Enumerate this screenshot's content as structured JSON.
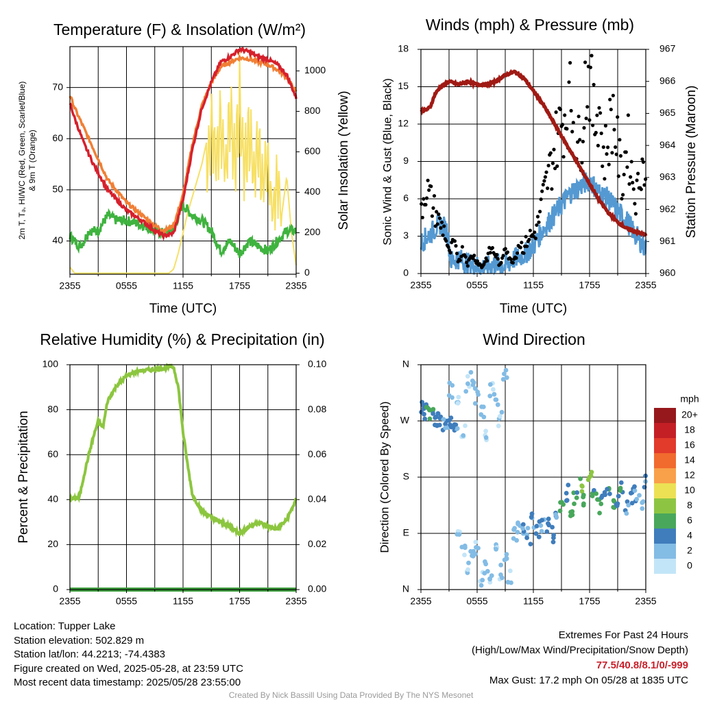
{
  "colors": {
    "temperature": "#d6202c",
    "temp_9m": "#f07f35",
    "dewpoint": "#3fb33f",
    "insolation": "#f7e066",
    "wind_speed": "#5499d2",
    "gust": "#000000",
    "pressure": "#a01a14",
    "humidity": "#8cc63f",
    "precip": "#3e9e3e",
    "extremes": "#c8202a"
  },
  "panels": {
    "temperature": {
      "title": "Temperature (F) & Insolation (W/m²)",
      "ylabel_left": "2m T, Tₔ, HI/WC (Red, Green, Scarlet/Blue) & 9m T (Orange)",
      "ylabel_left_line1": "2m T, Tₔ, HI/WC (Red, Green, Scarlet/Blue)",
      "ylabel_left_line2": "& 9m T (Orange)",
      "ylabel_right": "Solar Insolation (Yellow)",
      "xlabel": "Time (UTC)"
    },
    "winds": {
      "title": "Winds (mph) & Pressure (mb)",
      "ylabel_left": "Sonic Wind & Gust (Blue, Black)",
      "ylabel_right": "Station Pressure (Maroon)",
      "xlabel": "Time (UTC)"
    },
    "humidity": {
      "title": "Relative Humidity (%) & Precipitation (in)",
      "ylabel_left": "Percent & Precipitation"
    },
    "direction": {
      "title": "Wind Direction",
      "ylabel_left": "Direction (Colored By Speed)",
      "legend_title": "mph",
      "legend_labels": [
        "20+",
        "18",
        "16",
        "14",
        "12",
        "10",
        "8",
        "6",
        "4",
        "2",
        "0"
      ],
      "legend_colors": [
        "#96181c",
        "#c51f26",
        "#e23a2b",
        "#f16a2e",
        "#f9a04a",
        "#ece154",
        "#8dc543",
        "#48a75b",
        "#3f7dbc",
        "#83bce5",
        "#c3e5f8"
      ]
    }
  },
  "info": {
    "location": "Location: Tupper Lake",
    "elevation": "Station elevation: 502.829 m",
    "latlon": "Station lat/lon: 44.2213; -74.4383",
    "created": "Figure created on Wed, 2025-05-28, at 23:59 UTC",
    "recent": "Most recent data timestamp: 2025/05/28 23:55:00",
    "extremes_title": "Extremes For Past 24 Hours",
    "extremes_sub": "(High/Low/Max Wind/Precipitation/Snow Depth)",
    "extremes_values": "77.5/40.8/8.1/0/-999",
    "max_gust": "Max Gust: 17.2 mph On 05/28 at 1835 UTC",
    "credit": "Created By Nick Bassill Using Data Provided By The NYS Mesonet"
  },
  "chart_data": [
    {
      "type": "line",
      "title": "Temperature (F) & Insolation (W/m²)",
      "xlabel": "Time (UTC)",
      "x_ticks": [
        "2355",
        "0555",
        "1155",
        "1755",
        "2355"
      ],
      "x_hours": [
        0,
        6,
        12,
        18,
        24
      ],
      "ylim": [
        33.5,
        78
      ],
      "yticks": [
        40,
        50,
        60,
        70
      ],
      "y2lim": [
        -5,
        1120
      ],
      "y2ticks": [
        0,
        200,
        400,
        600,
        800,
        1000
      ],
      "series": [
        {
          "axis": "left",
          "color_key": "temperature",
          "x": [
            0,
            0.5,
            1.5,
            2.5,
            4,
            6,
            8,
            9,
            10,
            11,
            12,
            13,
            14,
            15,
            16,
            17,
            18,
            19,
            20,
            21,
            22,
            23,
            24
          ],
          "y": [
            67,
            64,
            59,
            55,
            50,
            46,
            43.5,
            42,
            41,
            41.5,
            48,
            58,
            66,
            71,
            75,
            76,
            77.5,
            77,
            76,
            75.5,
            74.5,
            72.5,
            68
          ]
        },
        {
          "axis": "left",
          "color_key": "temp_9m",
          "x": [
            0,
            0.5,
            1.5,
            2.5,
            4,
            6,
            8,
            9,
            10,
            11,
            12,
            13,
            14,
            15,
            16,
            17,
            18,
            19,
            20,
            21,
            22,
            23,
            24
          ],
          "y": [
            68.5,
            66,
            62,
            58,
            52,
            47.5,
            44.5,
            43,
            42,
            43,
            49,
            59,
            66.5,
            71,
            74,
            75,
            75.8,
            75.6,
            75,
            74.5,
            73.5,
            72,
            69
          ]
        },
        {
          "axis": "left",
          "color_key": "dewpoint",
          "x": [
            0,
            1,
            1.5,
            2,
            3,
            4,
            5,
            6,
            7,
            8,
            9,
            10,
            11,
            12,
            13,
            14,
            15,
            16,
            17,
            18,
            19,
            20,
            21,
            22,
            23,
            24
          ],
          "y": [
            41,
            39,
            40,
            42,
            42,
            45,
            44,
            44,
            43.5,
            43,
            42,
            41.5,
            42.5,
            47,
            45,
            44,
            42,
            38,
            40,
            37.5,
            40,
            39,
            38,
            40,
            42,
            42
          ]
        },
        {
          "axis": "right",
          "color_key": "insolation",
          "x": [
            0,
            0.5,
            10.5,
            11,
            11.5,
            12,
            12.5,
            13,
            13.5,
            14,
            14.5,
            15,
            15.5,
            16,
            16.5,
            17,
            17.5,
            18,
            18.5,
            19,
            19.5,
            20,
            20.5,
            21,
            21.5,
            22,
            22.5,
            23,
            23.5,
            24
          ],
          "y": [
            30,
            0,
            0,
            20,
            100,
            200,
            300,
            380,
            460,
            540,
            650,
            960,
            700,
            1000,
            620,
            1050,
            700,
            1080,
            650,
            950,
            600,
            850,
            500,
            750,
            350,
            620,
            300,
            480,
            200,
            40
          ]
        }
      ]
    },
    {
      "type": "line",
      "title": "Winds (mph) & Pressure (mb)",
      "xlabel": "Time (UTC)",
      "x_ticks": [
        "2355",
        "0555",
        "1155",
        "1755",
        "2355"
      ],
      "x_hours": [
        0,
        6,
        12,
        18,
        24
      ],
      "ylim": [
        0,
        18
      ],
      "yticks": [
        0,
        3,
        6,
        9,
        12,
        15,
        18
      ],
      "y2lim": [
        960,
        967
      ],
      "y2ticks": [
        960,
        961,
        962,
        963,
        964,
        965,
        966,
        967
      ],
      "series": [
        {
          "axis": "left",
          "color_key": "wind_speed",
          "x": [
            0,
            1,
            2,
            2.8,
            3.2,
            4,
            5,
            6,
            7,
            8,
            9,
            10,
            11,
            12,
            13,
            14,
            15,
            16,
            17,
            18,
            19,
            20,
            21,
            22,
            23,
            24
          ],
          "y": [
            2.5,
            3.2,
            4,
            3.5,
            1,
            1.2,
            0.8,
            0.6,
            0.5,
            0.8,
            0.6,
            1.2,
            1.5,
            2.2,
            3.5,
            4.5,
            5.5,
            6.5,
            7,
            7.5,
            6.5,
            6,
            5,
            4.2,
            3,
            2
          ]
        },
        {
          "axis": "left",
          "style": "dots",
          "color_key": "gust",
          "x": [
            0,
            0.5,
            1,
            1.5,
            2,
            2.5,
            3,
            3.5,
            4,
            4.5,
            5,
            5.5,
            6,
            6.5,
            7,
            7.5,
            8,
            8.5,
            9,
            9.5,
            10,
            10.5,
            11,
            11.5,
            12,
            12.5,
            13,
            13.5,
            14,
            14.5,
            15,
            15.5,
            16,
            16.5,
            17,
            17.5,
            18,
            18.5,
            19,
            19.5,
            20,
            20.5,
            21,
            21.5,
            22,
            22.5,
            23,
            23.5,
            24
          ],
          "y": [
            5,
            7,
            6,
            5,
            4,
            3.5,
            1.5,
            2.5,
            1,
            2,
            0.8,
            1.5,
            1,
            0.5,
            1.2,
            2,
            1.5,
            0.5,
            2.5,
            1,
            1.2,
            2.5,
            2,
            3,
            3,
            4,
            6,
            7.5,
            9,
            11,
            12,
            13,
            14,
            11,
            10,
            15,
            16,
            12,
            14,
            9,
            11,
            13,
            10,
            7,
            11,
            8,
            6,
            9,
            8
          ]
        },
        {
          "axis": "right",
          "color_key": "pressure",
          "x": [
            0,
            0.5,
            1,
            1.5,
            2,
            3,
            4,
            5,
            6,
            7,
            8,
            9,
            10,
            11,
            12,
            13,
            14,
            15,
            16,
            17,
            18,
            19,
            20,
            21,
            22,
            23,
            24
          ],
          "y": [
            965.1,
            965.1,
            965.2,
            965.6,
            965.8,
            966.0,
            965.9,
            966.0,
            965.9,
            965.9,
            966.0,
            966.2,
            966.3,
            966.1,
            965.7,
            965.3,
            964.8,
            964.3,
            963.8,
            963.3,
            962.8,
            962.3,
            961.9,
            961.6,
            961.4,
            961.3,
            961.2
          ]
        }
      ]
    },
    {
      "type": "line",
      "title": "Relative Humidity (%) & Precipitation (in)",
      "x_ticks": [
        "2355",
        "0555",
        "1155",
        "1755",
        "2355"
      ],
      "x_hours": [
        0,
        6,
        12,
        18,
        24
      ],
      "ylim": [
        0,
        100
      ],
      "yticks": [
        0,
        20,
        40,
        60,
        80,
        100
      ],
      "y2lim": [
        0,
        0.1
      ],
      "y2ticks": [
        "0.00",
        "0.02",
        "0.04",
        "0.06",
        "0.08",
        "0.10"
      ],
      "series": [
        {
          "axis": "left",
          "color_key": "humidity",
          "x": [
            0,
            1,
            1.5,
            2,
            2.5,
            3,
            3.5,
            4,
            5,
            6,
            7,
            8,
            9,
            10,
            10.5,
            11,
            11.5,
            12,
            12.5,
            13,
            14,
            15,
            16,
            17,
            18,
            19,
            20,
            21,
            22,
            23,
            24
          ],
          "y": [
            40,
            41,
            51,
            60,
            68,
            75,
            72,
            84,
            91,
            95,
            97,
            97.5,
            98,
            98.5,
            99,
            99,
            90,
            70,
            55,
            42,
            35,
            32,
            30,
            28,
            25,
            28,
            30,
            28,
            27,
            31,
            40
          ]
        },
        {
          "axis": "right",
          "color_key": "precip",
          "x": [
            0,
            24
          ],
          "y": [
            0,
            0
          ]
        }
      ]
    },
    {
      "type": "scatter",
      "title": "Wind Direction",
      "x_ticks": [
        "2355",
        "0555",
        "1155",
        "1755",
        "2355"
      ],
      "x_hours": [
        0,
        6,
        12,
        18,
        24
      ],
      "y_ticks": [
        "N",
        "E",
        "S",
        "W",
        "N"
      ],
      "ylim": [
        0,
        360
      ],
      "series": [
        {
          "x": [
            0.2,
            0.5,
            0.8,
            1.1,
            1.5,
            1.8,
            2.2,
            2.6,
            3.0,
            3.4,
            3.8
          ],
          "y": [
            290,
            285,
            282,
            278,
            275,
            272,
            268,
            265,
            270,
            262,
            258
          ],
          "speed": [
            4,
            4,
            5,
            5,
            4,
            4,
            4,
            3,
            3,
            4,
            3
          ]
        },
        {
          "x": [
            3.2,
            4.0,
            4.5,
            5.0,
            5.5,
            6.0,
            6.5,
            7.0,
            7.5,
            8.0,
            8.5,
            9.0
          ],
          "y": [
            320,
            300,
            250,
            330,
            340,
            310,
            290,
            245,
            320,
            300,
            270,
            350
          ],
          "speed": [
            2,
            1,
            1,
            1,
            2,
            1,
            2,
            1,
            1,
            2,
            1,
            2
          ]
        },
        {
          "x": [
            4.0,
            4.5,
            5.0,
            5.5,
            6.0,
            6.5,
            7.0,
            7.5,
            8.0,
            8.5,
            9.0,
            9.5
          ],
          "y": [
            80,
            60,
            30,
            50,
            70,
            20,
            40,
            10,
            60,
            30,
            50,
            20
          ],
          "speed": [
            1,
            1,
            1,
            2,
            1,
            1,
            2,
            1,
            1,
            1,
            2,
            1
          ]
        },
        {
          "x": [
            10,
            10.5,
            11,
            11.5,
            12,
            12.5,
            13,
            13.5,
            14,
            14.5
          ],
          "y": [
            90,
            95,
            100,
            85,
            110,
            95,
            105,
            100,
            90,
            115
          ],
          "speed": [
            2,
            2,
            3,
            3,
            3,
            4,
            3,
            4,
            4,
            3
          ]
        },
        {
          "x": [
            15,
            15.5,
            16,
            16.5,
            17,
            17.5,
            18,
            18.5,
            19,
            19.5,
            20,
            20.5,
            21,
            21.5,
            22,
            22.5,
            23,
            23.5,
            24
          ],
          "y": [
            140,
            155,
            130,
            150,
            165,
            145,
            175,
            150,
            135,
            160,
            155,
            140,
            145,
            160,
            135,
            150,
            155,
            140,
            170
          ],
          "speed": [
            6,
            4,
            6,
            5,
            7,
            6,
            8,
            5,
            6,
            4,
            5,
            6,
            4,
            5,
            3,
            4,
            3,
            2,
            3
          ]
        }
      ]
    }
  ]
}
